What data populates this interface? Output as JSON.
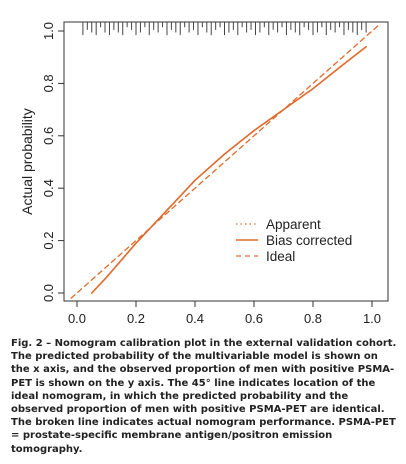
{
  "chart_data": {
    "type": "line",
    "title": "",
    "xlabel": "",
    "ylabel": "Actual probability",
    "xlim": [
      0,
      1
    ],
    "ylim": [
      0,
      1
    ],
    "x_ticks": [
      "0.0",
      "0.2",
      "0.4",
      "0.6",
      "0.8",
      "1.0"
    ],
    "y_ticks": [
      "0.0",
      "0.2",
      "0.4",
      "0.6",
      "0.8",
      "1.0"
    ],
    "grid": false,
    "legend_position": "bottom-right",
    "legend": [
      "Apparent",
      "Bias corrected",
      "Ideal"
    ],
    "series": [
      {
        "name": "Apparent",
        "style": "dotted",
        "color": "#e06a2c",
        "x": [
          0.05,
          0.1,
          0.2,
          0.3,
          0.4,
          0.5,
          0.6,
          0.7,
          0.8,
          0.9,
          0.98
        ],
        "y": [
          0.0,
          0.06,
          0.19,
          0.31,
          0.43,
          0.53,
          0.62,
          0.7,
          0.78,
          0.87,
          0.94
        ]
      },
      {
        "name": "Bias corrected",
        "style": "solid",
        "color": "#e06a2c",
        "x": [
          0.05,
          0.1,
          0.2,
          0.3,
          0.4,
          0.5,
          0.6,
          0.7,
          0.8,
          0.9,
          0.98
        ],
        "y": [
          0.0,
          0.06,
          0.19,
          0.31,
          0.43,
          0.53,
          0.62,
          0.7,
          0.78,
          0.87,
          0.94
        ]
      },
      {
        "name": "Ideal",
        "style": "dashed",
        "color": "#e06a2c",
        "x": [
          -0.02,
          1.02
        ],
        "y": [
          -0.02,
          1.02
        ]
      }
    ],
    "rug_x": [
      0.02,
      0.035,
      0.05,
      0.065,
      0.08,
      0.095,
      0.11,
      0.125,
      0.14,
      0.155,
      0.17,
      0.185,
      0.2,
      0.215,
      0.23,
      0.245,
      0.26,
      0.275,
      0.29,
      0.305,
      0.32,
      0.335,
      0.35,
      0.365,
      0.38,
      0.395,
      0.41,
      0.425,
      0.44,
      0.455,
      0.47,
      0.485,
      0.5,
      0.515,
      0.53,
      0.545,
      0.56,
      0.575,
      0.59,
      0.605,
      0.62,
      0.635,
      0.65,
      0.665,
      0.68,
      0.695,
      0.71,
      0.725,
      0.74,
      0.755,
      0.77,
      0.785,
      0.8,
      0.815,
      0.83,
      0.845,
      0.86,
      0.875,
      0.89,
      0.905,
      0.92,
      0.935,
      0.95,
      0.965,
      0.98
    ],
    "rug_len": [
      0.05,
      0.03,
      0.04,
      0.05,
      0.02,
      0.04,
      0.05,
      0.03,
      0.04,
      0.05,
      0.02,
      0.03,
      0.05,
      0.04,
      0.02,
      0.05,
      0.03,
      0.04,
      0.02,
      0.05,
      0.03,
      0.04,
      0.05,
      0.02,
      0.04,
      0.03,
      0.05,
      0.02,
      0.04,
      0.05,
      0.03,
      0.02,
      0.05,
      0.04,
      0.03,
      0.05,
      0.02,
      0.04,
      0.03,
      0.05,
      0.04,
      0.02,
      0.05,
      0.03,
      0.04,
      0.02,
      0.05,
      0.03,
      0.04,
      0.05,
      0.02,
      0.03,
      0.05,
      0.04,
      0.02,
      0.05,
      0.03,
      0.04,
      0.02,
      0.05,
      0.03,
      0.04,
      0.05,
      0.03,
      0.04
    ]
  },
  "caption": {
    "label": "Fig. 2 –",
    "text": "Nomogram calibration plot in the external validation cohort. The predicted probability of the multivariable model is shown on the x axis, and the observed proportion of men with positive PSMA-PET is shown on the y axis. The 45° line indicates location of the ideal nomogram, in which the predicted probability and the observed proportion of men with positive PSMA-PET are identical. The broken line indicates actual nomogram performance. PSMA-PET = prostate-specific membrane antigen/positron emission tomography."
  }
}
